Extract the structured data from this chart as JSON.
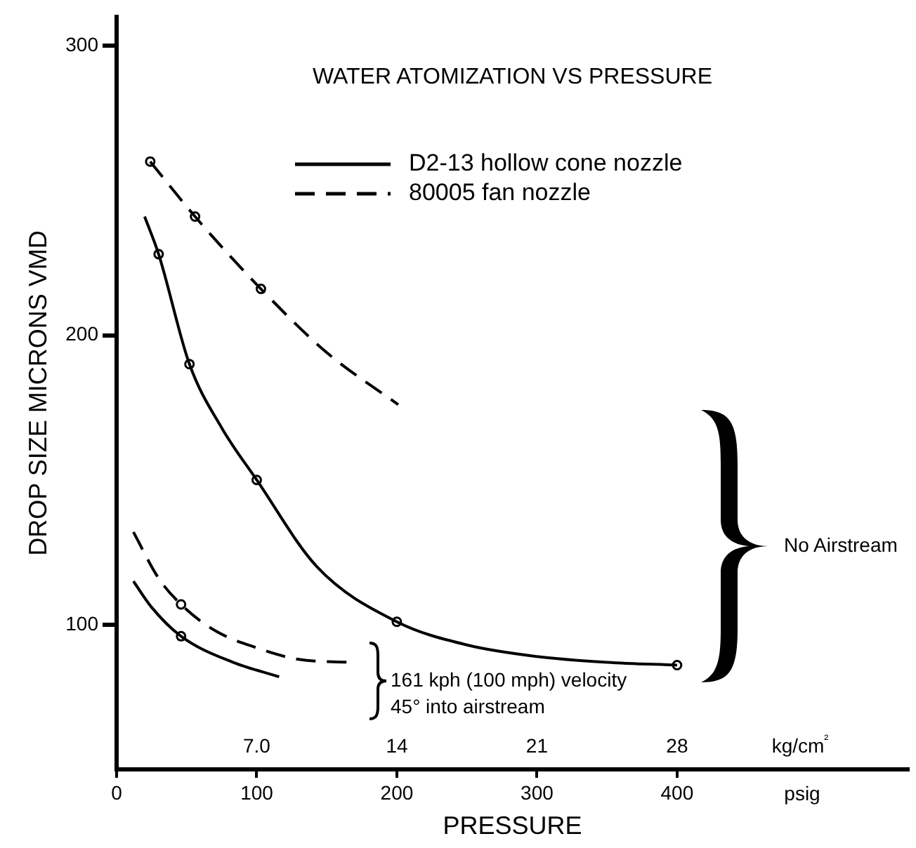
{
  "chart_data": {
    "type": "line",
    "title": "WATER ATOMIZATION VS PRESSURE",
    "xlabel": "PRESSURE",
    "ylabel": "DROP SIZE MICRONS VMD",
    "x2label": "kg/cm²",
    "xlim": [
      0,
      565
    ],
    "xticks": [
      0,
      100,
      200,
      300,
      400
    ],
    "x2lim": [
      0,
      39.55
    ],
    "x2ticks": [
      {
        "value": 7,
        "label": "7.0"
      },
      14,
      21,
      28
    ],
    "ylim": [
      50,
      310
    ],
    "yticks": [
      100,
      200,
      300
    ],
    "grid": false,
    "legend": "top",
    "marker": "none",
    "annotations": [
      "No Airstream",
      "161 kph (100 mph) velocity\n45° into airstream",
      "psig"
    ],
    "series": [
      {
        "name": "D2-13 hollow cone nozzle",
        "color": "#000000",
        "line_style": "solid",
        "x": [
          20,
          30,
          52,
          75,
          100,
          143,
          200,
          250,
          300,
          350,
          400
        ],
        "values": [
          241,
          228,
          190,
          168,
          150,
          120,
          101,
          93,
          89,
          87,
          86
        ]
      },
      {
        "name": "80005 fan nozzle",
        "color": "#000000",
        "line_style": "dashed",
        "x": [
          24,
          56,
          103,
          150,
          201
        ],
        "values": [
          260,
          241,
          216,
          194,
          176
        ]
      },
      {
        "color": "#000000",
        "line_style": "solid",
        "x": [
          12,
          25,
          46,
          83,
          116
        ],
        "values": [
          115,
          106,
          96,
          87,
          82
        ]
      },
      {
        "color": "#000000",
        "line_style": "dashed",
        "x": [
          12,
          30,
          46,
          70,
          100,
          130,
          166
        ],
        "values": [
          132,
          116,
          107,
          98,
          92,
          88,
          87
        ]
      },
      {
        "type": "scatter",
        "marker": "circle",
        "color": "#000000",
        "x": [
          30,
          52,
          100,
          200,
          400,
          46
        ],
        "values": [
          228,
          190,
          150,
          101,
          86,
          96
        ]
      },
      {
        "type": "scatter",
        "marker": "circle",
        "color": "#000000",
        "x": [
          24,
          56,
          103,
          46
        ],
        "values": [
          260,
          241,
          216,
          107
        ]
      }
    ]
  }
}
